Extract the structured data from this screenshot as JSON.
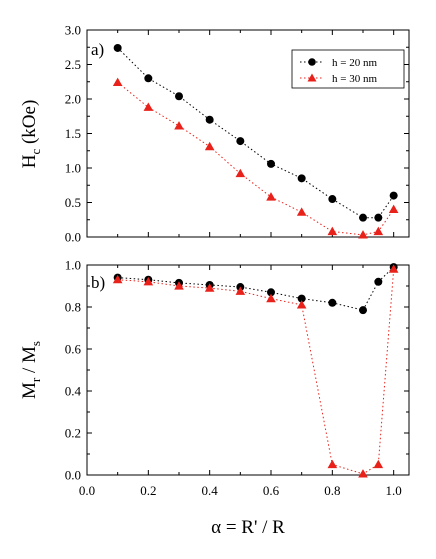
{
  "chart_data": [
    {
      "type": "line",
      "panel_label": "a)",
      "ylabel": {
        "main": "H",
        "sub": "c",
        "rest": " (kOe)"
      },
      "xlabel": "",
      "xlim": [
        0.0,
        1.05
      ],
      "ylim": [
        0.0,
        3.0
      ],
      "yticks": [
        "0.0",
        "0.5",
        "1.0",
        "1.5",
        "2.0",
        "2.5",
        "3.0"
      ],
      "ytick_values": [
        0.0,
        0.5,
        1.0,
        1.5,
        2.0,
        2.5,
        3.0
      ],
      "legend_position": "top-right",
      "series": [
        {
          "name": "h = 20 nm",
          "marker": "circle",
          "color": "#000000",
          "x": [
            0.1,
            0.2,
            0.3,
            0.4,
            0.5,
            0.6,
            0.7,
            0.8,
            0.9,
            0.95,
            1.0
          ],
          "y": [
            2.74,
            2.3,
            2.04,
            1.7,
            1.39,
            1.06,
            0.85,
            0.55,
            0.28,
            0.28,
            0.6
          ]
        },
        {
          "name": "h = 30 nm",
          "marker": "triangle",
          "color": "#e8221b",
          "x": [
            0.1,
            0.2,
            0.3,
            0.4,
            0.5,
            0.6,
            0.7,
            0.8,
            0.9,
            0.95,
            1.0
          ],
          "y": [
            2.24,
            1.88,
            1.61,
            1.31,
            0.92,
            0.58,
            0.36,
            0.08,
            0.03,
            0.08,
            0.4
          ]
        }
      ]
    },
    {
      "type": "line",
      "panel_label": "b)",
      "ylabel": {
        "main": "M",
        "sub": "r",
        "mid": " / M",
        "sub2": "s"
      },
      "xlabel": "α = R' / R",
      "xlim": [
        0.0,
        1.05
      ],
      "ylim": [
        0.0,
        1.0
      ],
      "xticks": [
        "0.0",
        "0.2",
        "0.4",
        "0.6",
        "0.8",
        "1.0"
      ],
      "xtick_values": [
        0.0,
        0.2,
        0.4,
        0.6,
        0.8,
        1.0
      ],
      "yticks": [
        "0.0",
        "0.2",
        "0.4",
        "0.6",
        "0.8",
        "1.0"
      ],
      "ytick_values": [
        0.0,
        0.2,
        0.4,
        0.6,
        0.8,
        1.0
      ],
      "series": [
        {
          "name": "h = 20 nm",
          "marker": "circle",
          "color": "#000000",
          "x": [
            0.1,
            0.2,
            0.3,
            0.4,
            0.5,
            0.6,
            0.7,
            0.8,
            0.9,
            0.95,
            1.0
          ],
          "y": [
            0.94,
            0.93,
            0.915,
            0.905,
            0.895,
            0.87,
            0.84,
            0.82,
            0.785,
            0.92,
            0.99
          ]
        },
        {
          "name": "h = 30 nm",
          "marker": "triangle",
          "color": "#e8221b",
          "x": [
            0.1,
            0.2,
            0.3,
            0.4,
            0.5,
            0.6,
            0.7,
            0.8,
            0.9,
            0.95,
            1.0
          ],
          "y": [
            0.93,
            0.92,
            0.9,
            0.89,
            0.875,
            0.84,
            0.81,
            0.05,
            0.005,
            0.05,
            0.98
          ]
        }
      ]
    }
  ]
}
